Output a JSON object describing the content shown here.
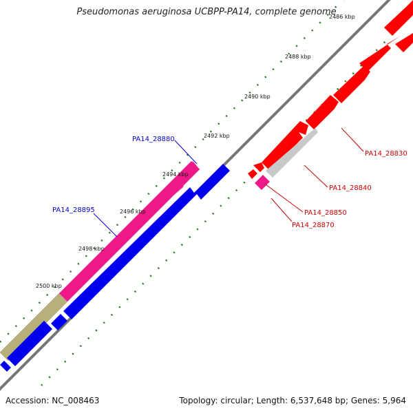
{
  "title": "Pseudomonas aeruginosa UCBPP-PA14, complete genome",
  "footer": {
    "accession": "Accession: NC_008463",
    "summary": "Topology: circular; Length: 6,537,648 bp; Genes: 5,964"
  },
  "ticks": [
    "2486 kbp",
    "2488 kbp",
    "2490 kbp",
    "2492 kbp",
    "2494 kbp",
    "2496 kbp",
    "2498 kbp",
    "2500 kbp"
  ],
  "labels": {
    "left": [
      "PA14_28880",
      "PA14_28895"
    ],
    "right": [
      "PA14_28830",
      "PA14_28840",
      "PA14_28850",
      "PA14_28870"
    ]
  },
  "colors": {
    "forward_red": "#ff0000",
    "magenta": "#ee1a8a",
    "blue": "#0000ee",
    "olive": "#b8b07a",
    "grey": "#c8c8c8",
    "label_blue": "#0000cc",
    "label_red": "#cc0000",
    "tick_green": "#1a7a1a"
  }
}
